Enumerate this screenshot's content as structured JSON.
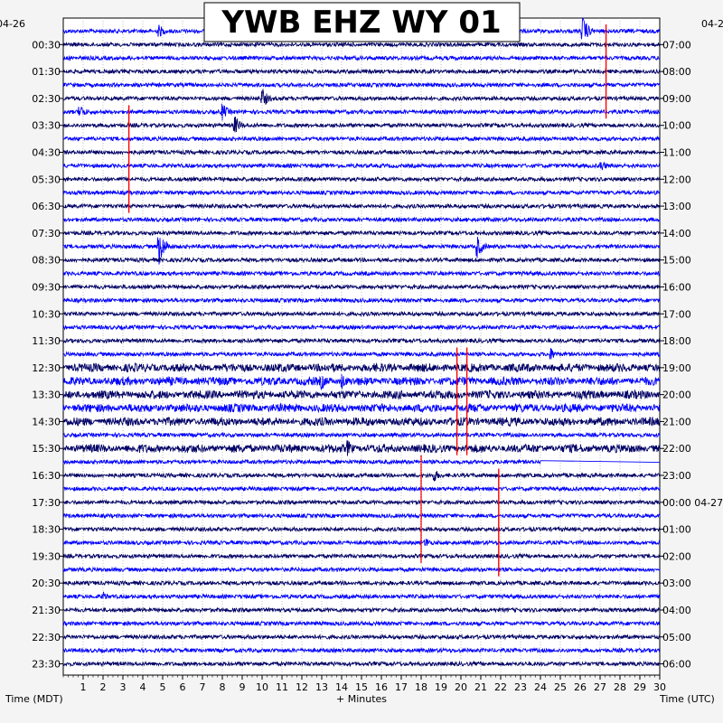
{
  "chart_data": {
    "type": "line",
    "title": "YWB EHZ WY 01",
    "left_date": "04-26",
    "right_date": "04-26",
    "right_date_rollover": "04-27",
    "xlabel_left": "Time (MDT)",
    "xlabel_center": "+ Minutes",
    "xlabel_right": "Time (UTC)",
    "xlim": [
      0,
      30
    ],
    "x_ticks": [
      "1",
      "2",
      "3",
      "4",
      "5",
      "6",
      "7",
      "8",
      "9",
      "10",
      "11",
      "12",
      "13",
      "14",
      "15",
      "16",
      "17",
      "18",
      "19",
      "20",
      "21",
      "22",
      "23",
      "24",
      "25",
      "26",
      "27",
      "28",
      "29",
      "30"
    ],
    "left_times": [
      "00:30",
      "01:30",
      "02:30",
      "03:30",
      "04:30",
      "05:30",
      "06:30",
      "07:30",
      "08:30",
      "09:30",
      "10:30",
      "11:30",
      "12:30",
      "13:30",
      "14:30",
      "15:30",
      "16:30",
      "17:30",
      "18:30",
      "19:30",
      "20:30",
      "21:30",
      "22:30",
      "23:30"
    ],
    "right_times": [
      "07:00",
      "08:00",
      "09:00",
      "10:00",
      "11:00",
      "12:00",
      "13:00",
      "14:00",
      "15:00",
      "16:00",
      "17:00",
      "18:00",
      "19:00",
      "20:00",
      "21:00",
      "22:00",
      "23:00",
      "00:00",
      "01:00",
      "02:00",
      "03:00",
      "04:00",
      "05:00",
      "06:00"
    ],
    "trace_colors": [
      "#0000ff",
      "#000066"
    ],
    "marker_color": "#ff0000",
    "red_markers": [
      {
        "minute": 27.3,
        "from_trace": 0,
        "to_trace": 6
      },
      {
        "minute": 3.3,
        "from_trace": 6,
        "to_trace": 13
      },
      {
        "minute": 19.8,
        "from_trace": 24,
        "to_trace": 31
      },
      {
        "minute": 20.3,
        "from_trace": 24,
        "to_trace": 31
      },
      {
        "minute": 18.0,
        "from_trace": 32,
        "to_trace": 39
      },
      {
        "minute": 21.9,
        "from_trace": 33,
        "to_trace": 40
      }
    ],
    "events": [
      {
        "trace": 0,
        "minute": 26.1,
        "amp": 18
      },
      {
        "trace": 0,
        "minute": 4.8,
        "amp": 8
      },
      {
        "trace": 6,
        "minute": 0.8,
        "amp": 10
      },
      {
        "trace": 6,
        "minute": 8.0,
        "amp": 10
      },
      {
        "trace": 5,
        "minute": 10.0,
        "amp": 12
      },
      {
        "trace": 7,
        "minute": 8.6,
        "amp": 12
      },
      {
        "trace": 16,
        "minute": 4.8,
        "amp": 22
      },
      {
        "trace": 16,
        "minute": 20.8,
        "amp": 14
      },
      {
        "trace": 10,
        "minute": 27.0,
        "amp": 8
      },
      {
        "trace": 26,
        "minute": 13.0,
        "amp": 10
      },
      {
        "trace": 26,
        "minute": 14.0,
        "amp": 10
      },
      {
        "trace": 31,
        "minute": 14.3,
        "amp": 10
      },
      {
        "trace": 33,
        "minute": 18.6,
        "amp": 9
      },
      {
        "trace": 24,
        "minute": 24.5,
        "amp": 8
      },
      {
        "trace": 38,
        "minute": 18.2,
        "amp": 7
      },
      {
        "trace": 42,
        "minute": 2.0,
        "amp": 6
      }
    ],
    "noisy_traces": [
      25,
      26,
      27,
      28,
      29,
      31
    ],
    "gap": {
      "trace": 32,
      "minute_start": 24.0,
      "minute_end": 30.0
    }
  }
}
